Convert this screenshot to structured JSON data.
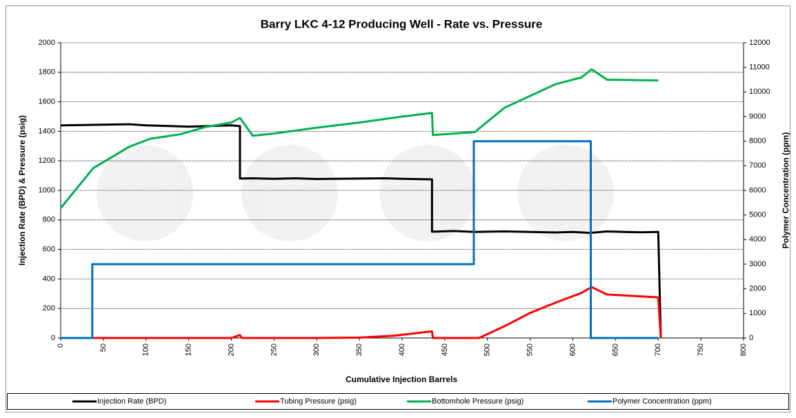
{
  "chart_data": {
    "type": "line",
    "title": "Barry LKC 4-12 Producing Well - Rate vs. Pressure",
    "x_label": "Cumulative Injection Barrels",
    "y_label": "Injection Rate (BPD) & Pressure (psig)",
    "y2_label": "Polymer Concentration (ppm)",
    "xlim": [
      0,
      800
    ],
    "xticks": [
      0,
      50,
      100,
      150,
      200,
      250,
      300,
      350,
      400,
      450,
      500,
      550,
      600,
      650,
      700,
      750,
      800
    ],
    "ylim": [
      0,
      2000
    ],
    "yticks": [
      0,
      200,
      400,
      600,
      800,
      1000,
      1200,
      1400,
      1600,
      1800,
      2000
    ],
    "y2lim": [
      0,
      12000
    ],
    "y2ticks": [
      0,
      1000,
      2000,
      3000,
      4000,
      5000,
      6000,
      7000,
      8000,
      9000,
      10000,
      11000,
      12000
    ],
    "grid": true,
    "legend": "bottom",
    "series": [
      {
        "name": "Injection Rate (BPD)",
        "color": "#000000",
        "x": [
          0,
          80,
          100,
          150,
          200,
          210,
          210,
          225,
          250,
          275,
          300,
          350,
          380,
          400,
          435,
          435,
          460,
          485,
          500,
          520,
          550,
          580,
          600,
          620,
          640,
          660,
          680,
          700,
          703
        ],
        "values": [
          1440,
          1448,
          1440,
          1432,
          1440,
          1435,
          1080,
          1082,
          1078,
          1082,
          1077,
          1080,
          1082,
          1078,
          1075,
          720,
          725,
          718,
          720,
          722,
          718,
          715,
          718,
          712,
          722,
          718,
          716,
          718,
          0
        ]
      },
      {
        "name": "Tubing Pressure (psig)",
        "color": "#ff0000",
        "x": [
          0,
          200,
          210,
          212,
          300,
          350,
          390,
          420,
          435,
          436,
          490,
          520,
          550,
          580,
          610,
          622,
          640,
          700,
          703
        ],
        "values": [
          0,
          0,
          20,
          0,
          0,
          3,
          15,
          35,
          45,
          0,
          0,
          80,
          170,
          240,
          305,
          345,
          295,
          275,
          0
        ]
      },
      {
        "name": "Bottomhole Pressure (psig)",
        "color": "#00b050",
        "x": [
          0,
          38,
          80,
          105,
          140,
          170,
          200,
          210,
          225,
          250,
          275,
          300,
          350,
          400,
          435,
          436,
          460,
          485,
          520,
          550,
          580,
          610,
          622,
          640,
          700
        ],
        "values": [
          880,
          1150,
          1295,
          1350,
          1380,
          1430,
          1460,
          1490,
          1370,
          1385,
          1405,
          1425,
          1460,
          1500,
          1525,
          1375,
          1385,
          1395,
          1560,
          1640,
          1720,
          1765,
          1820,
          1750,
          1745
        ]
      },
      {
        "name": "Polymer Concentration (ppm)",
        "color": "#0070c0",
        "axis": "y2",
        "x": [
          0,
          37,
          37,
          484,
          484,
          621,
          621,
          700
        ],
        "values": [
          0,
          0,
          3000,
          3000,
          8000,
          8000,
          0,
          0
        ]
      }
    ]
  }
}
